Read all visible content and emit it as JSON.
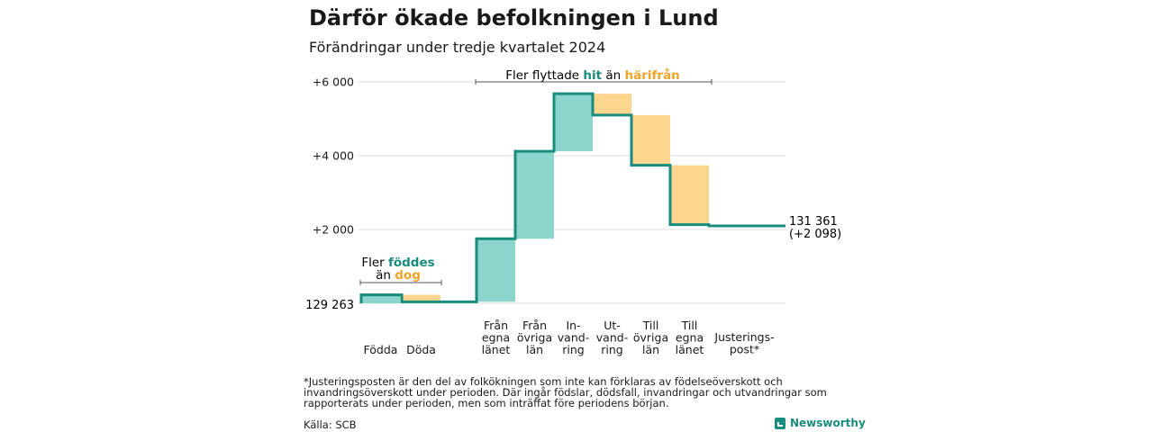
{
  "title": "Därför ökade befolkningen i Lund",
  "subtitle": "Förändringar under tredje kvartalet 2024",
  "footnote": "*Justeringsposten är den del av folkökningen som inte kan förklaras av födelseöverskott och invandringsöverskott under perioden. Där ingår födslar, dödsfall, invandringar och utvandringar som rapporterats under perioden, men som inträffat före periodens början.",
  "source": "Källa: SCB",
  "brand": "Newsworthy",
  "colors": {
    "increase": "#8dd5cc",
    "decrease": "#fcd68e",
    "line": "#1a8c7d",
    "teal_text": "#1a8c7d",
    "orange_text": "#f0a32a",
    "grid": "#dddddd"
  },
  "chart_data": {
    "type": "waterfall",
    "baseline": 129263,
    "baseline_label": "129 263",
    "final_value": 131361,
    "end_label_total": "131 361",
    "end_label_change": "(+2 098)",
    "y_axis": {
      "min": 0,
      "max": 6000,
      "ticks": [
        {
          "value": 2000,
          "label": "+2 000"
        },
        {
          "value": 4000,
          "label": "+4 000"
        },
        {
          "value": 6000,
          "label": "+6 000"
        }
      ]
    },
    "steps": [
      {
        "label": [
          "Födda"
        ],
        "delta": 230
      },
      {
        "label": [
          "Döda"
        ],
        "delta": -190
      },
      {
        "label": [
          "Från",
          "egna",
          "länet"
        ],
        "delta": 1710
      },
      {
        "label": [
          "Från",
          "övriga",
          "län"
        ],
        "delta": 2370
      },
      {
        "label": [
          "In-",
          "vand-",
          "ring"
        ],
        "delta": 1560
      },
      {
        "label": [
          "Ut-",
          "vand-",
          "ring"
        ],
        "delta": -580
      },
      {
        "label": [
          "Till",
          "övriga",
          "län"
        ],
        "delta": -1360
      },
      {
        "label": [
          "Till",
          "egna",
          "länet"
        ],
        "delta": -1610
      },
      {
        "label": [
          "Justerings-",
          "post*"
        ],
        "delta": -32
      }
    ],
    "annotations": [
      {
        "line1": "Fler",
        "highlight1": "föddes",
        "line2": "än",
        "highlight2": "dog"
      },
      {
        "prefix": "Fler flyttade",
        "highlight1": "hit",
        "middle": "än",
        "highlight2": "härifrån"
      }
    ]
  }
}
